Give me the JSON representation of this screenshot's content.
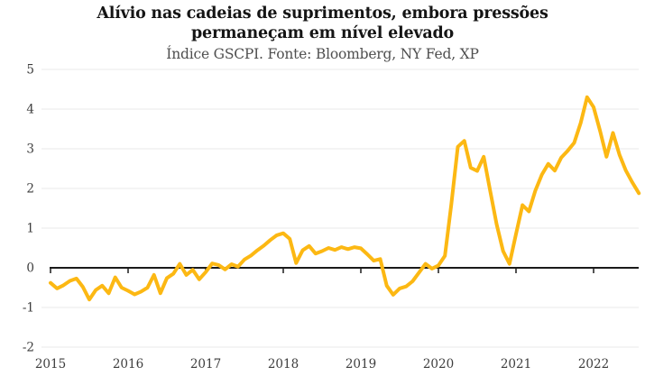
{
  "header": {
    "title_line1": "Alívio nas cadeias de suprimentos, embora pressões",
    "title_line2": "permaneçam em nível elevado",
    "subtitle": "Índice GSCPI. Fonte: Bloomberg, NY Fed, XP"
  },
  "colors": {
    "line": "#FCB813",
    "gridline": "#e9e9e9",
    "zero_axis": "#1a1a1a",
    "tick_label": "#3d3d3d",
    "title": "#151515",
    "subtitle": "#4f4f4f",
    "background": "#ffffff"
  },
  "chart_data": {
    "type": "line",
    "title": "Alívio nas cadeias de suprimentos, embora pressões permaneçam em nível elevado",
    "subtitle": "Índice GSCPI. Fonte: Bloomberg, NY Fed, XP",
    "xlabel": "",
    "ylabel": "",
    "ylim": [
      -2,
      5
    ],
    "y_ticks": [
      5,
      4,
      3,
      2,
      1,
      0,
      -1,
      -2
    ],
    "x_tick_labels": [
      "2015",
      "2016",
      "2017",
      "2018",
      "2019",
      "2020",
      "2021",
      "2022"
    ],
    "grid": "horizontal",
    "zero_axis": true,
    "legend": "none",
    "series": [
      {
        "name": "Índice GSCPI",
        "frequency": "monthly",
        "start": "2015-01",
        "end": "2022-08",
        "values": [
          -0.38,
          -0.52,
          -0.44,
          -0.33,
          -0.27,
          -0.48,
          -0.8,
          -0.56,
          -0.45,
          -0.64,
          -0.24,
          -0.5,
          -0.58,
          -0.67,
          -0.6,
          -0.5,
          -0.18,
          -0.64,
          -0.26,
          -0.15,
          0.1,
          -0.18,
          -0.05,
          -0.29,
          -0.11,
          0.11,
          0.07,
          -0.04,
          0.09,
          0.03,
          0.21,
          0.31,
          0.44,
          0.56,
          0.7,
          0.82,
          0.87,
          0.73,
          0.12,
          0.44,
          0.55,
          0.36,
          0.42,
          0.5,
          0.45,
          0.52,
          0.47,
          0.52,
          0.49,
          0.34,
          0.18,
          0.22,
          -0.45,
          -0.68,
          -0.52,
          -0.47,
          -0.34,
          -0.12,
          0.1,
          -0.02,
          0.06,
          0.3,
          1.6,
          3.05,
          3.2,
          2.52,
          2.44,
          2.8,
          1.95,
          1.1,
          0.42,
          0.1,
          0.85,
          1.58,
          1.42,
          1.95,
          2.35,
          2.62,
          2.45,
          2.78,
          2.95,
          3.15,
          3.65,
          4.3,
          4.05,
          3.45,
          2.8,
          3.4,
          2.85,
          2.45,
          2.15,
          1.88
        ]
      }
    ]
  }
}
